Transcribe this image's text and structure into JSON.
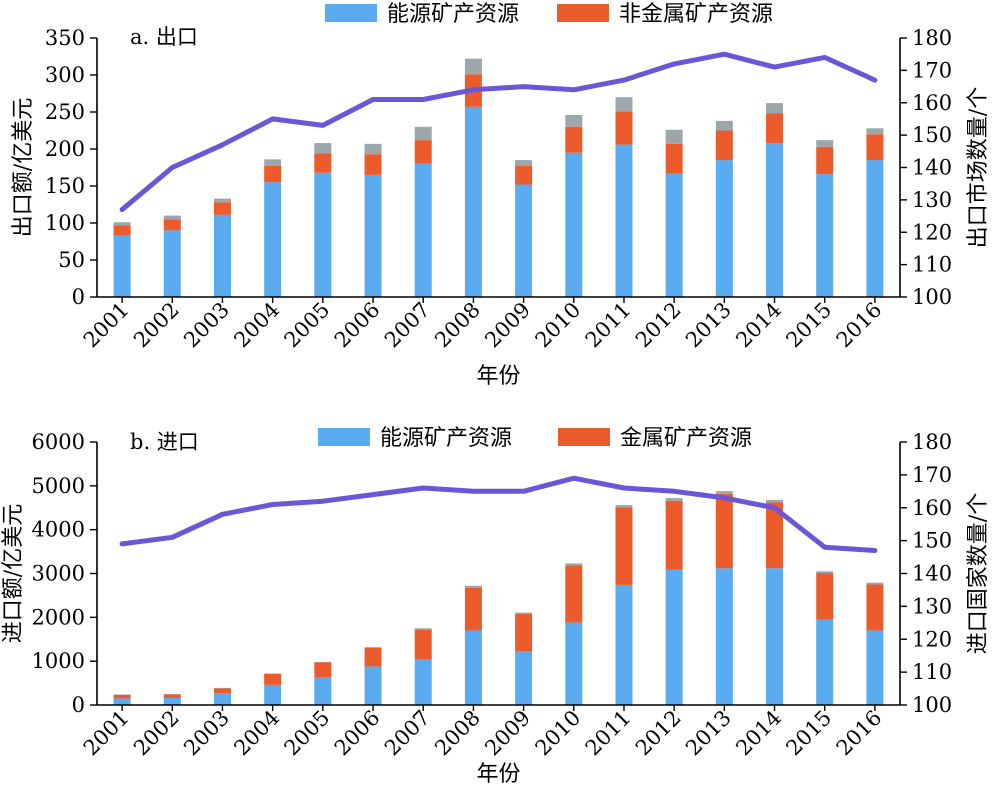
{
  "chart_data": [
    {
      "type": "bar",
      "stacked": true,
      "panel_label": "a. 出口",
      "categories": [
        "2001",
        "2002",
        "2003",
        "2004",
        "2005",
        "2006",
        "2007",
        "2008",
        "2009",
        "2010",
        "2011",
        "2012",
        "2013",
        "2014",
        "2015",
        "2016"
      ],
      "xlabel": "年份",
      "ylabel": "出口额/亿美元",
      "ylabel_right": "出口市场数量/个",
      "ylim": [
        0,
        350
      ],
      "yticks": [
        0,
        50,
        100,
        150,
        200,
        250,
        300,
        350
      ],
      "ylim_right": [
        100,
        180
      ],
      "yticks_right": [
        100,
        110,
        120,
        130,
        140,
        150,
        160,
        170,
        180
      ],
      "legend": [
        {
          "label": "能源矿产资源",
          "color": "#5aabef"
        },
        {
          "label": "非金属矿产资源",
          "color": "#ec5b2b"
        }
      ],
      "series": [
        {
          "name": "能源矿产资源",
          "color": "#5aabef",
          "values": [
            83,
            90,
            111,
            155,
            168,
            165,
            180,
            257,
            152,
            195,
            206,
            167,
            185,
            208,
            166,
            185
          ]
        },
        {
          "name": "非金属矿产资源",
          "color": "#ec5b2b",
          "values": [
            14,
            15,
            17,
            22,
            26,
            28,
            32,
            44,
            25,
            35,
            45,
            40,
            40,
            40,
            37,
            35
          ]
        },
        {
          "color": "#9ba7ab",
          "values": [
            4,
            5,
            5,
            9,
            14,
            14,
            18,
            21,
            8,
            16,
            19,
            19,
            13,
            14,
            9,
            8
          ]
        }
      ],
      "line_series": {
        "axis": "right",
        "color": "#6a57d8",
        "values": [
          127,
          140,
          147,
          155,
          153,
          161,
          161,
          164,
          165,
          164,
          167,
          172,
          175,
          171,
          174,
          167
        ]
      }
    },
    {
      "type": "bar",
      "stacked": true,
      "panel_label": "b. 进口",
      "categories": [
        "2001",
        "2002",
        "2003",
        "2004",
        "2005",
        "2006",
        "2007",
        "2008",
        "2009",
        "2010",
        "2011",
        "2012",
        "2013",
        "2014",
        "2015",
        "2016"
      ],
      "xlabel": "年份",
      "ylabel": "进口额/亿美元",
      "ylabel_right": "进口国家数量/个",
      "ylim": [
        0,
        6000
      ],
      "yticks": [
        0,
        1000,
        2000,
        3000,
        4000,
        5000,
        6000
      ],
      "ylim_right": [
        100,
        180
      ],
      "yticks_right": [
        100,
        110,
        120,
        130,
        140,
        150,
        160,
        170,
        180
      ],
      "legend": [
        {
          "label": "能源矿产资源",
          "color": "#5aabef"
        },
        {
          "label": "金属矿产资源",
          "color": "#ec5b2b"
        }
      ],
      "series": [
        {
          "name": "能源矿产资源",
          "color": "#5aabef",
          "values": [
            150,
            160,
            270,
            460,
            630,
            880,
            1040,
            1700,
            1230,
            1880,
            2740,
            3090,
            3120,
            3120,
            1950,
            1700
          ]
        },
        {
          "name": "金属矿产资源",
          "color": "#ec5b2b",
          "values": [
            80,
            80,
            110,
            250,
            340,
            420,
            680,
            970,
            850,
            1310,
            1770,
            1570,
            1700,
            1500,
            1060,
            1050
          ]
        },
        {
          "color": "#9ba7ab",
          "values": [
            10,
            10,
            10,
            10,
            10,
            20,
            30,
            50,
            30,
            40,
            50,
            60,
            60,
            60,
            40,
            40
          ]
        }
      ],
      "line_series": {
        "axis": "right",
        "color": "#6a57d8",
        "values": [
          149,
          151,
          158,
          161,
          162,
          164,
          166,
          165,
          165,
          169,
          166,
          165,
          163,
          160,
          148,
          147
        ]
      }
    }
  ]
}
